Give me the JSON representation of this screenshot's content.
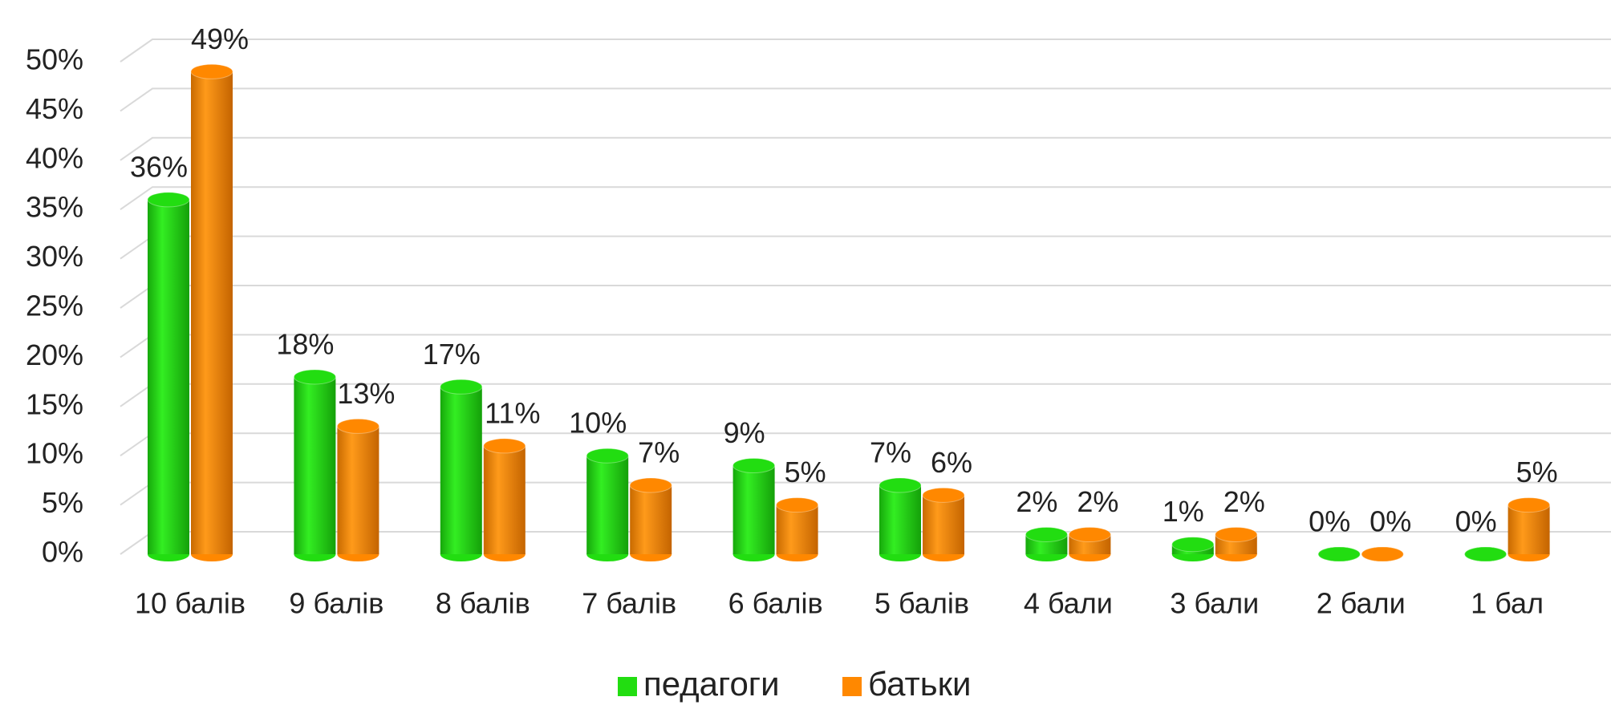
{
  "chart_data": {
    "type": "bar3d",
    "categories": [
      "10 балів",
      "9 балів",
      "8 балів",
      "7 балів",
      "6 балів",
      "5 балів",
      "4 бали",
      "3 бали",
      "2 бали",
      "1 бал"
    ],
    "series": [
      {
        "name": "педагоги",
        "color": "#22dd11",
        "values": [
          36,
          18,
          17,
          10,
          9,
          7,
          2,
          1,
          0,
          0
        ],
        "value_labels": [
          "36%",
          "18%",
          "17%",
          "10%",
          "9%",
          "7%",
          "2%",
          "1%",
          "0%",
          "0%"
        ]
      },
      {
        "name": "батьки",
        "color": "#ff8800",
        "values": [
          49,
          13,
          11,
          7,
          5,
          6,
          2,
          2,
          0,
          5
        ],
        "value_labels": [
          "49%",
          "13%",
          "11%",
          "7%",
          "5%",
          "6%",
          "2%",
          "2%",
          "0%",
          "5%"
        ]
      }
    ],
    "ylim": [
      0,
      50
    ],
    "yticks": [
      {
        "value": 0,
        "label": "0%"
      },
      {
        "value": 5,
        "label": "5%"
      },
      {
        "value": 10,
        "label": "10%"
      },
      {
        "value": 15,
        "label": "15%"
      },
      {
        "value": 20,
        "label": "20%"
      },
      {
        "value": 25,
        "label": "25%"
      },
      {
        "value": 30,
        "label": "30%"
      },
      {
        "value": 35,
        "label": "35%"
      },
      {
        "value": 40,
        "label": "40%"
      },
      {
        "value": 45,
        "label": "45%"
      },
      {
        "value": 50,
        "label": "50%"
      }
    ],
    "grid": true,
    "legend": "bottom"
  }
}
